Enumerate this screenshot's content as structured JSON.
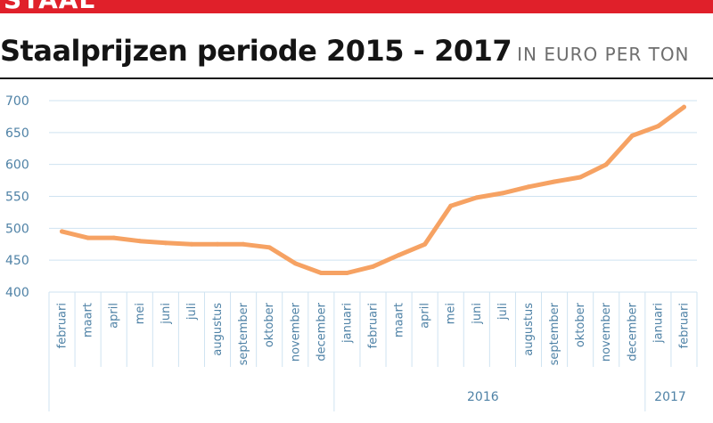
{
  "banner": {
    "text": "STAAL"
  },
  "header": {
    "title": "Staalprijzen periode 2015 - 2017",
    "unit_text": "IN EURO PER TON"
  },
  "colors": {
    "banner": "#e0202a",
    "line": "#f6a263",
    "grid": "#cfe3f1",
    "axis_text": "#4f82a6"
  },
  "chart_data": {
    "type": "line",
    "title": "Staalprijzen periode 2015 - 2017",
    "subtitle": "IN EURO PER TON",
    "xlabel": "",
    "ylabel": "",
    "ylim": [
      400,
      700
    ],
    "yticks": [
      400,
      450,
      500,
      550,
      600,
      650,
      700
    ],
    "grid": true,
    "categories": [
      "februari",
      "maart",
      "april",
      "mei",
      "juni",
      "juli",
      "augustus",
      "september",
      "oktober",
      "november",
      "december",
      "januari",
      "februari",
      "maart",
      "april",
      "mei",
      "juni",
      "juli",
      "augustus",
      "september",
      "oktober",
      "november",
      "december",
      "januari",
      "februari"
    ],
    "year_groups": [
      {
        "label": "",
        "start": 0,
        "end": 10
      },
      {
        "label": "2016",
        "start": 11,
        "end": 22
      },
      {
        "label": "2017",
        "start": 23,
        "end": 24
      }
    ],
    "series": [
      {
        "values": [
          495,
          485,
          485,
          480,
          477,
          475,
          475,
          475,
          470,
          445,
          430,
          430,
          440,
          458,
          475,
          535,
          548,
          555,
          565,
          573,
          580,
          600,
          645,
          660,
          690
        ]
      }
    ]
  }
}
